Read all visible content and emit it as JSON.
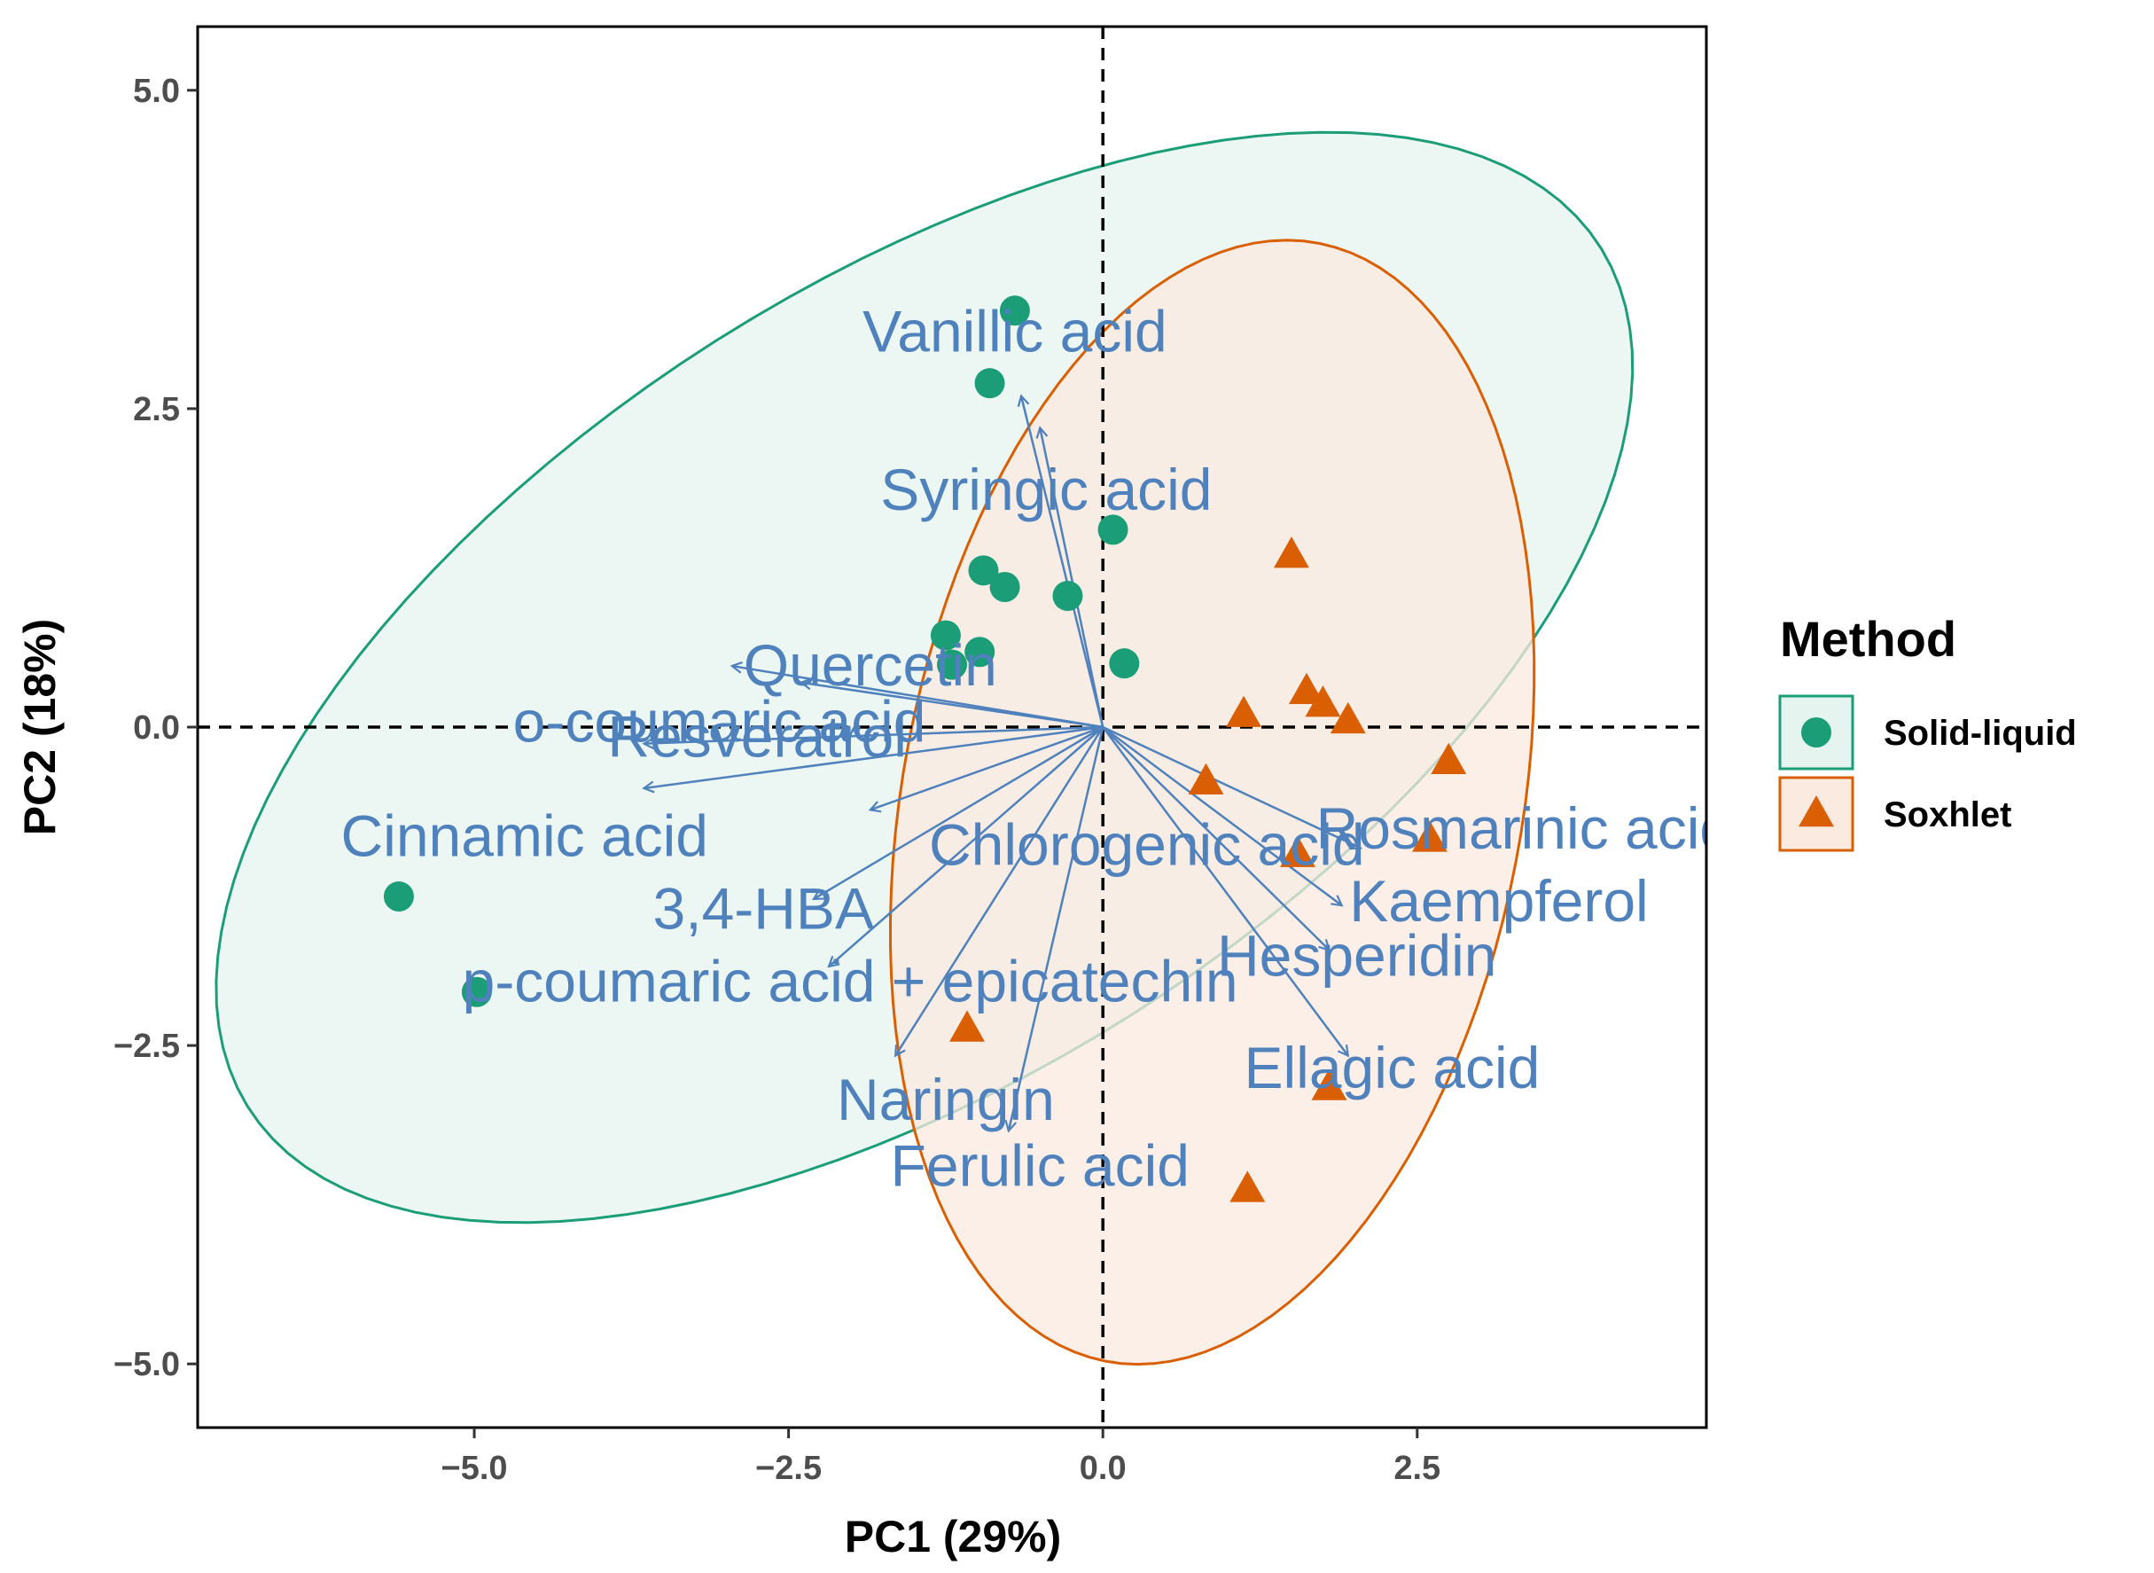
{
  "chart_data": {
    "type": "scatter",
    "subtype": "pca-biplot",
    "xlabel": "PC1 (29%)",
    "ylabel": "PC2 (18%)",
    "xlim": [
      -7.2,
      4.8
    ],
    "ylim": [
      -5.5,
      5.5
    ],
    "x_ticks": [
      -5.0,
      -2.5,
      0.0,
      2.5
    ],
    "x_tick_labels": [
      "−5.0",
      "−2.5",
      "0.0",
      "2.5"
    ],
    "y_ticks": [
      5.0,
      2.5,
      0.0,
      -2.5,
      -5.0
    ],
    "y_tick_labels": [
      "5.0",
      "2.5",
      "0.0",
      "−2.5",
      "−5.0"
    ],
    "grid": false,
    "reference_lines": {
      "x": 0,
      "y": 0,
      "style": "dashed"
    },
    "legend": {
      "title": "Method",
      "placement": "right",
      "entries": [
        {
          "label": "Solid-liquid",
          "marker": "circle",
          "color": "#1b9e77"
        },
        {
          "label": "Soxhlet",
          "marker": "triangle",
          "color": "#d95f02"
        }
      ]
    },
    "series": [
      {
        "name": "Solid-liquid",
        "marker": "circle",
        "color": "#1b9e77",
        "fill": "#e6f4ef",
        "points": [
          {
            "x": -0.7,
            "y": 3.27
          },
          {
            "x": -0.9,
            "y": 2.7
          },
          {
            "x": 0.08,
            "y": 1.55
          },
          {
            "x": -0.95,
            "y": 1.23
          },
          {
            "x": -0.78,
            "y": 1.1
          },
          {
            "x": -0.28,
            "y": 1.03
          },
          {
            "x": -1.25,
            "y": 0.72
          },
          {
            "x": -0.98,
            "y": 0.59
          },
          {
            "x": -1.2,
            "y": 0.49
          },
          {
            "x": 0.17,
            "y": 0.5
          },
          {
            "x": -5.6,
            "y": -1.33
          },
          {
            "x": -4.98,
            "y": -2.08
          }
        ],
        "ellipse": {
          "cx": -1.42,
          "cy": 0.39,
          "rx": 6.35,
          "ry": 3.12,
          "angle_deg": 32
        }
      },
      {
        "name": "Soxhlet",
        "marker": "triangle",
        "color": "#d95f02",
        "fill": "#fbeadf",
        "points": [
          {
            "x": 1.5,
            "y": 1.35
          },
          {
            "x": 1.12,
            "y": 0.1
          },
          {
            "x": 1.62,
            "y": 0.28
          },
          {
            "x": 1.75,
            "y": 0.18
          },
          {
            "x": 1.95,
            "y": 0.05
          },
          {
            "x": 2.75,
            "y": -0.27
          },
          {
            "x": 0.82,
            "y": -0.43
          },
          {
            "x": 1.55,
            "y": -1.0
          },
          {
            "x": 2.6,
            "y": -0.88
          },
          {
            "x": -1.08,
            "y": -2.37
          },
          {
            "x": 1.8,
            "y": -2.83
          },
          {
            "x": 1.15,
            "y": -3.63
          }
        ],
        "ellipse": {
          "cx": 0.87,
          "cy": -0.59,
          "rx": 4.47,
          "ry": 2.46,
          "angle_deg": 79
        }
      }
    ],
    "loadings": [
      {
        "label": "Vanillic acid",
        "x": -0.65,
        "y": 2.6
      },
      {
        "label": "Syringic acid",
        "x": -0.5,
        "y": 2.35
      },
      {
        "label": "Quercetin",
        "x": -2.4,
        "y": 0.35
      },
      {
        "label": "o-coumaric acid",
        "x": -2.95,
        "y": 0.48
      },
      {
        "label": "Resveratrol",
        "x": -3.65,
        "y": -0.13
      },
      {
        "label": "Cinnamic acid",
        "x": -3.65,
        "y": -0.48
      },
      {
        "label": "Chlorogenic acid",
        "x": -1.85,
        "y": -0.65
      },
      {
        "label": "3,4-HBA",
        "x": -2.3,
        "y": -1.35
      },
      {
        "label": "p-coumaric acid + epicatechin",
        "x": -2.18,
        "y": -1.88
      },
      {
        "label": "Naringin",
        "x": -1.65,
        "y": -2.58
      },
      {
        "label": "Ferulic acid",
        "x": -0.75,
        "y": -3.17
      },
      {
        "label": "Rosmarinic acid",
        "x": 2.05,
        "y": -0.95
      },
      {
        "label": "Kaempferol",
        "x": 1.9,
        "y": -1.4
      },
      {
        "label": "Hesperidin",
        "x": 1.8,
        "y": -1.75
      },
      {
        "label": "Ellagic acid",
        "x": 1.95,
        "y": -2.58
      }
    ],
    "loading_color": "#4f81bd"
  }
}
